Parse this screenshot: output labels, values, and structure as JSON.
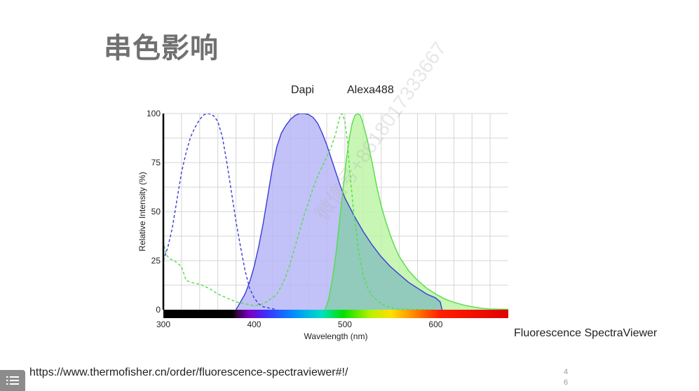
{
  "slide": {
    "title": "串色影响",
    "caption": "Fluorescence SpectraViewer",
    "source_url": "https://www.thermofisher.cn/order/fluorescence-spectraviewer#!/",
    "page_number": [
      "4",
      "6"
    ],
    "watermark": "微信号+8618017333667"
  },
  "colors": {
    "dapi_line": "#3b3bd6",
    "dapi_fill": "#b7b7f7",
    "alexa_line": "#55dd44",
    "alexa_fill": "#bdf5a8",
    "overlap_fill": "#8fc9bd",
    "title": "#707070"
  },
  "chart_data": {
    "type": "area",
    "xlabel": "Wavelength (nm)",
    "ylabel": "Relative Intensity (%)",
    "xlim": [
      300,
      680
    ],
    "ylim": [
      0,
      100
    ],
    "x_ticks": [
      300,
      400,
      500,
      600
    ],
    "y_ticks": [
      0,
      25,
      50,
      75,
      100
    ],
    "grid": true,
    "spectrum_bar": true,
    "series": [
      {
        "name": "Dapi",
        "kind": "excitation",
        "style": "dashed",
        "filled": false,
        "color": "#3b3bd6",
        "points": [
          [
            300,
            25
          ],
          [
            305,
            32
          ],
          [
            310,
            42
          ],
          [
            315,
            56
          ],
          [
            320,
            70
          ],
          [
            325,
            80
          ],
          [
            330,
            88
          ],
          [
            335,
            93
          ],
          [
            340,
            97
          ],
          [
            345,
            99.5
          ],
          [
            350,
            100
          ],
          [
            355,
            99
          ],
          [
            360,
            96
          ],
          [
            365,
            88
          ],
          [
            370,
            75
          ],
          [
            375,
            60
          ],
          [
            380,
            45
          ],
          [
            385,
            32
          ],
          [
            390,
            20
          ],
          [
            395,
            11
          ],
          [
            400,
            6
          ],
          [
            405,
            3
          ],
          [
            410,
            1.5
          ],
          [
            420,
            0.5
          ],
          [
            425,
            0
          ]
        ]
      },
      {
        "name": "Dapi",
        "kind": "emission",
        "style": "solid",
        "filled": true,
        "color": "#3b3bd6",
        "points": [
          [
            380,
            0
          ],
          [
            385,
            4
          ],
          [
            390,
            8
          ],
          [
            395,
            14
          ],
          [
            400,
            22
          ],
          [
            405,
            32
          ],
          [
            410,
            44
          ],
          [
            415,
            58
          ],
          [
            420,
            72
          ],
          [
            425,
            83
          ],
          [
            430,
            90
          ],
          [
            435,
            94
          ],
          [
            440,
            97
          ],
          [
            445,
            99
          ],
          [
            450,
            100
          ],
          [
            455,
            100
          ],
          [
            460,
            99.5
          ],
          [
            465,
            98
          ],
          [
            470,
            95
          ],
          [
            475,
            90
          ],
          [
            480,
            84
          ],
          [
            485,
            77
          ],
          [
            490,
            70
          ],
          [
            495,
            63
          ],
          [
            500,
            57
          ],
          [
            510,
            48
          ],
          [
            520,
            40
          ],
          [
            530,
            33
          ],
          [
            540,
            27
          ],
          [
            550,
            22
          ],
          [
            560,
            18
          ],
          [
            570,
            14
          ],
          [
            580,
            11
          ],
          [
            590,
            8
          ],
          [
            600,
            6
          ],
          [
            605,
            4
          ],
          [
            607,
            0
          ]
        ]
      },
      {
        "name": "Alexa488",
        "kind": "excitation",
        "style": "dashed",
        "filled": false,
        "color": "#55dd44",
        "points": [
          [
            300,
            35
          ],
          [
            303,
            28
          ],
          [
            307,
            26
          ],
          [
            312,
            25
          ],
          [
            320,
            22
          ],
          [
            325,
            15
          ],
          [
            330,
            14
          ],
          [
            340,
            13
          ],
          [
            350,
            11
          ],
          [
            360,
            8
          ],
          [
            370,
            6
          ],
          [
            380,
            4
          ],
          [
            390,
            3
          ],
          [
            400,
            2
          ],
          [
            410,
            3
          ],
          [
            420,
            6
          ],
          [
            425,
            8
          ],
          [
            430,
            12
          ],
          [
            435,
            17
          ],
          [
            440,
            24
          ],
          [
            445,
            32
          ],
          [
            450,
            40
          ],
          [
            455,
            48
          ],
          [
            460,
            55
          ],
          [
            465,
            62
          ],
          [
            470,
            68
          ],
          [
            475,
            73
          ],
          [
            480,
            78
          ],
          [
            485,
            83
          ],
          [
            490,
            90
          ],
          [
            493,
            96
          ],
          [
            495,
            99
          ],
          [
            497,
            100
          ],
          [
            500,
            96
          ],
          [
            503,
            85
          ],
          [
            505,
            72
          ],
          [
            508,
            58
          ],
          [
            510,
            48
          ],
          [
            513,
            38
          ],
          [
            515,
            30
          ],
          [
            520,
            18
          ],
          [
            525,
            11
          ],
          [
            530,
            7
          ],
          [
            540,
            3
          ],
          [
            550,
            1
          ],
          [
            560,
            0.3
          ],
          [
            600,
            0
          ]
        ]
      },
      {
        "name": "Alexa488",
        "kind": "emission",
        "style": "solid",
        "filled": true,
        "color": "#55dd44",
        "points": [
          [
            478,
            0
          ],
          [
            482,
            5
          ],
          [
            486,
            15
          ],
          [
            490,
            28
          ],
          [
            494,
            45
          ],
          [
            498,
            62
          ],
          [
            502,
            78
          ],
          [
            505,
            88
          ],
          [
            508,
            95
          ],
          [
            511,
            99
          ],
          [
            514,
            100
          ],
          [
            517,
            99
          ],
          [
            520,
            95
          ],
          [
            525,
            86
          ],
          [
            530,
            75
          ],
          [
            535,
            63
          ],
          [
            540,
            53
          ],
          [
            545,
            45
          ],
          [
            550,
            38
          ],
          [
            555,
            32
          ],
          [
            560,
            27
          ],
          [
            570,
            20
          ],
          [
            580,
            15
          ],
          [
            590,
            11
          ],
          [
            600,
            8
          ],
          [
            610,
            5.5
          ],
          [
            620,
            3.8
          ],
          [
            630,
            2.5
          ],
          [
            640,
            1.5
          ],
          [
            650,
            0.8
          ],
          [
            660,
            0.4
          ],
          [
            680,
            0.2
          ]
        ]
      }
    ]
  }
}
